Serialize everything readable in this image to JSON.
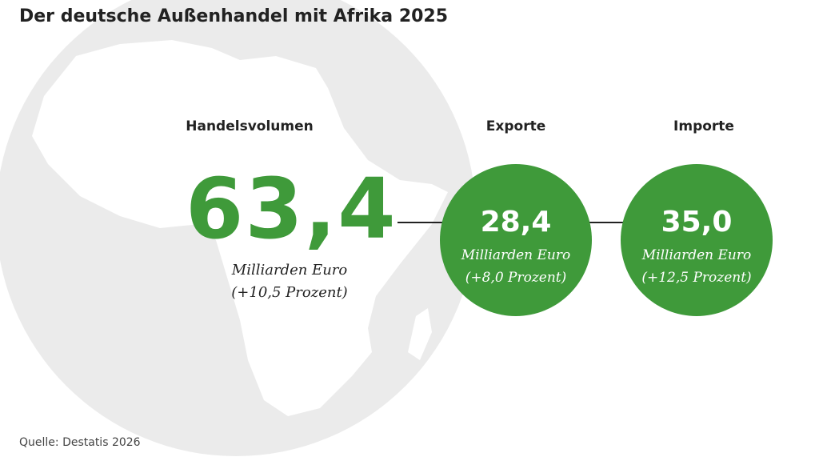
{
  "title": "Der deutsche Außenhandel mit Afrika 2025",
  "handelsvolumen": {
    "label": "Handelsvolumen",
    "value": "63,4",
    "unit": "Milliarden Euro",
    "change": "(+10,5 Prozent)"
  },
  "exporte": {
    "label": "Exporte",
    "value": "28,4",
    "unit": "Milliarden Euro",
    "change": "(+8,0 Prozent)"
  },
  "importe": {
    "label": "Importe",
    "value": "35,0",
    "unit": "Milliarden Euro",
    "change": "(+12,5 Prozent)"
  },
  "source": "Quelle: Destatis 2026",
  "colors": {
    "accent": "#3f9a3a",
    "globe": "#ebebeb"
  }
}
